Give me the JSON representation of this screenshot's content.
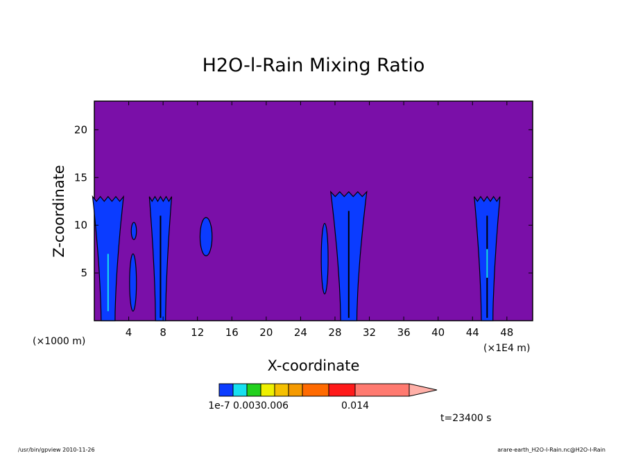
{
  "chart_data": {
    "type": "heatmap",
    "title": "H2O-l-Rain Mixing Ratio",
    "xlabel": "X-coordinate",
    "ylabel": "Z-coordinate",
    "x_unit_left": "(×1000 m)",
    "x_unit_right": "(×1E4 m)",
    "x_ticks": [
      4,
      8,
      12,
      16,
      20,
      24,
      28,
      32,
      36,
      40,
      44,
      48
    ],
    "y_ticks": [
      5,
      10,
      15,
      20
    ],
    "xlim": [
      0,
      51
    ],
    "ylim": [
      0,
      23
    ],
    "background_color": "#7a0fa8",
    "colorbar": {
      "colors": [
        "#0b3cff",
        "#16e0f0",
        "#22d11e",
        "#eef000",
        "#f5c000",
        "#f59a00",
        "#ff6a00",
        "#ff1a1a",
        "#ff7a70",
        "#ffb0a8"
      ],
      "labels": [
        "1e-7",
        "0.003",
        "0.006",
        "0.014"
      ],
      "label_positions": [
        0,
        2,
        4,
        8
      ]
    },
    "time_label": "t=23400 s",
    "footer_left": "/usr/bin/gpview   2010-11-26",
    "footer_right": "arare-earth_H2O-l-Rain.nc@H2O-l-Rain",
    "cells": [
      {
        "x": [
          0,
          1.0,
          2.0,
          3.2
        ],
        "z": [
          13.3,
          13.0,
          12.8,
          12.9
        ],
        "base_half": 0.9,
        "top_half": 1.6,
        "xc": 1.6
      },
      {
        "x_center": 4.5,
        "z_bottom": 1.0,
        "z_top": 7.0,
        "half_width": 0.4
      },
      {
        "x_center": 4.6,
        "z_bottom": 8.5,
        "z_top": 10.3,
        "half_width": 0.3
      },
      {
        "x_center": 7.7,
        "z_bottom": 0,
        "z_top": 13.0,
        "half_width": 1.3
      },
      {
        "x_center": 13.0,
        "z_bottom": 6.8,
        "z_top": 10.8,
        "half_width": 0.7
      },
      {
        "x_center": 26.8,
        "z_bottom": 2.8,
        "z_top": 10.2,
        "half_width": 0.4
      },
      {
        "x_center": 29.6,
        "z_bottom": 0,
        "z_top": 13.5,
        "half_width": 2.1
      },
      {
        "x_center": 45.7,
        "z_bottom": 0,
        "z_top": 13.0,
        "half_width": 1.5
      }
    ]
  }
}
